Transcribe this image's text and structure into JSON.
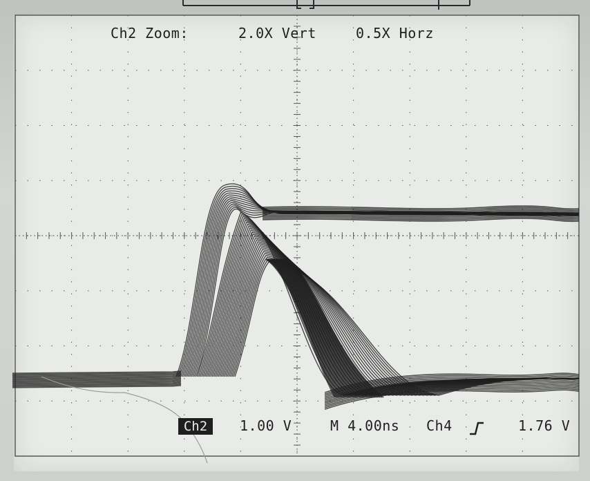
{
  "header": {
    "zoom_label": "Ch2 Zoom:",
    "vertical_zoom": "2.0X Vert",
    "horizontal_zoom": "0.5X Horz"
  },
  "footer": {
    "channel": "Ch2",
    "volts_per_div": "1.00 V",
    "timebase": "M 4.00ns",
    "trigger_source": "Ch4",
    "trigger_slope_icon": "rising-edge-icon",
    "trigger_level": "1.76 V"
  },
  "colors": {
    "screen": "#e9ebe8",
    "trace": "#1e1f1e",
    "grid": "#555855"
  }
}
